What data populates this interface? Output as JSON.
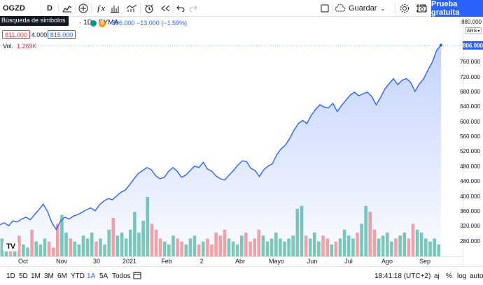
{
  "toolbar": {
    "symbol": "OGZD",
    "interval": "D",
    "tooltip": "Búsqueda de símbolos",
    "save_label": "Guardar",
    "trial_label": "Prueba gratuita"
  },
  "legend": {
    "title": "· 1D · BYMA",
    "dot_d": "D",
    "price_line": "806.000  −13.000 (−1.59%)",
    "bid": "811.000",
    "spread": "4.000",
    "ask": "815.000",
    "volume_label": "Vol.",
    "volume_value": "1.269K"
  },
  "colors": {
    "accent": "#2962ff",
    "line": "#2962ff",
    "up_volume": "#7fc9b8",
    "down_volume": "#f5a5a5",
    "bid_color": "#f23645"
  },
  "price_axis": {
    "top_label": "880.000",
    "currency": "ARS",
    "current_price": "806.000",
    "labels": [
      "760.000",
      "720.000",
      "680.000",
      "640.000",
      "600.000",
      "560.000",
      "520.000",
      "480.000",
      "440.000",
      "400.000",
      "360.000",
      "320.000",
      "280.000"
    ]
  },
  "time_axis": {
    "labels": [
      "Oct",
      "Nov",
      "30",
      "2021",
      "Feb",
      "2",
      "Abr",
      "Mayo",
      "Jun",
      "Jul",
      "Ago",
      "Sep"
    ]
  },
  "bottom": {
    "ranges": [
      "1D",
      "5D",
      "1M",
      "3M",
      "6M",
      "YTD",
      "1A",
      "5A",
      "Todos"
    ],
    "active_range": "1A",
    "clock": "18:41:18 (UTC+2)",
    "aj": "aj",
    "pct": "%",
    "log": "log",
    "auto": "auto"
  },
  "chart_data": {
    "type": "area",
    "series": [
      {
        "values": [
          325,
          330,
          322,
          335,
          332,
          340,
          345,
          338,
          352,
          365,
          380,
          360,
          330,
          312,
          335,
          345,
          340,
          348,
          352,
          358,
          365,
          370,
          362,
          378,
          388,
          395,
          392,
          402,
          412,
          418,
          432,
          448,
          462,
          470,
          478,
          472,
          456,
          448,
          452,
          468,
          478,
          468,
          452,
          458,
          470,
          482,
          478,
          492,
          474,
          468,
          455,
          448,
          445,
          458,
          470,
          484,
          496,
          494,
          476,
          470,
          454,
          472,
          482,
          488,
          512,
          528,
          538,
          556,
          578,
          596,
          604,
          596,
          618,
          634,
          646,
          640,
          638,
          650,
          628,
          644,
          658,
          672,
          680,
          670,
          676,
          680,
          668,
          646,
          665,
          688,
          703,
          716,
          700,
          712,
          716,
          706,
          682,
          702,
          716,
          740,
          760,
          792,
          806
        ]
      }
    ],
    "volume": [
      30,
      20,
      15,
      25,
      35,
      20,
      15,
      45,
      25,
      20,
      30,
      25,
      15,
      55,
      70,
      40,
      30,
      25,
      20,
      35,
      30,
      40,
      25,
      30,
      20,
      45,
      65,
      35,
      40,
      30,
      45,
      75,
      40,
      60,
      100,
      55,
      45,
      30,
      25,
      20,
      35,
      30,
      25,
      20,
      30,
      35,
      20,
      25,
      30,
      20,
      40,
      35,
      45,
      30,
      25,
      20,
      35,
      40,
      25,
      30,
      45,
      35,
      25,
      30,
      40,
      30,
      25,
      30,
      35,
      80,
      85,
      35,
      30,
      40,
      25,
      35,
      30,
      20,
      25,
      30,
      45,
      35,
      30,
      40,
      55,
      85,
      75,
      45,
      30,
      35,
      40,
      25,
      30,
      35,
      40,
      30,
      55,
      45,
      40,
      30,
      25,
      30,
      20
    ],
    "ylim": [
      240,
      880
    ]
  }
}
